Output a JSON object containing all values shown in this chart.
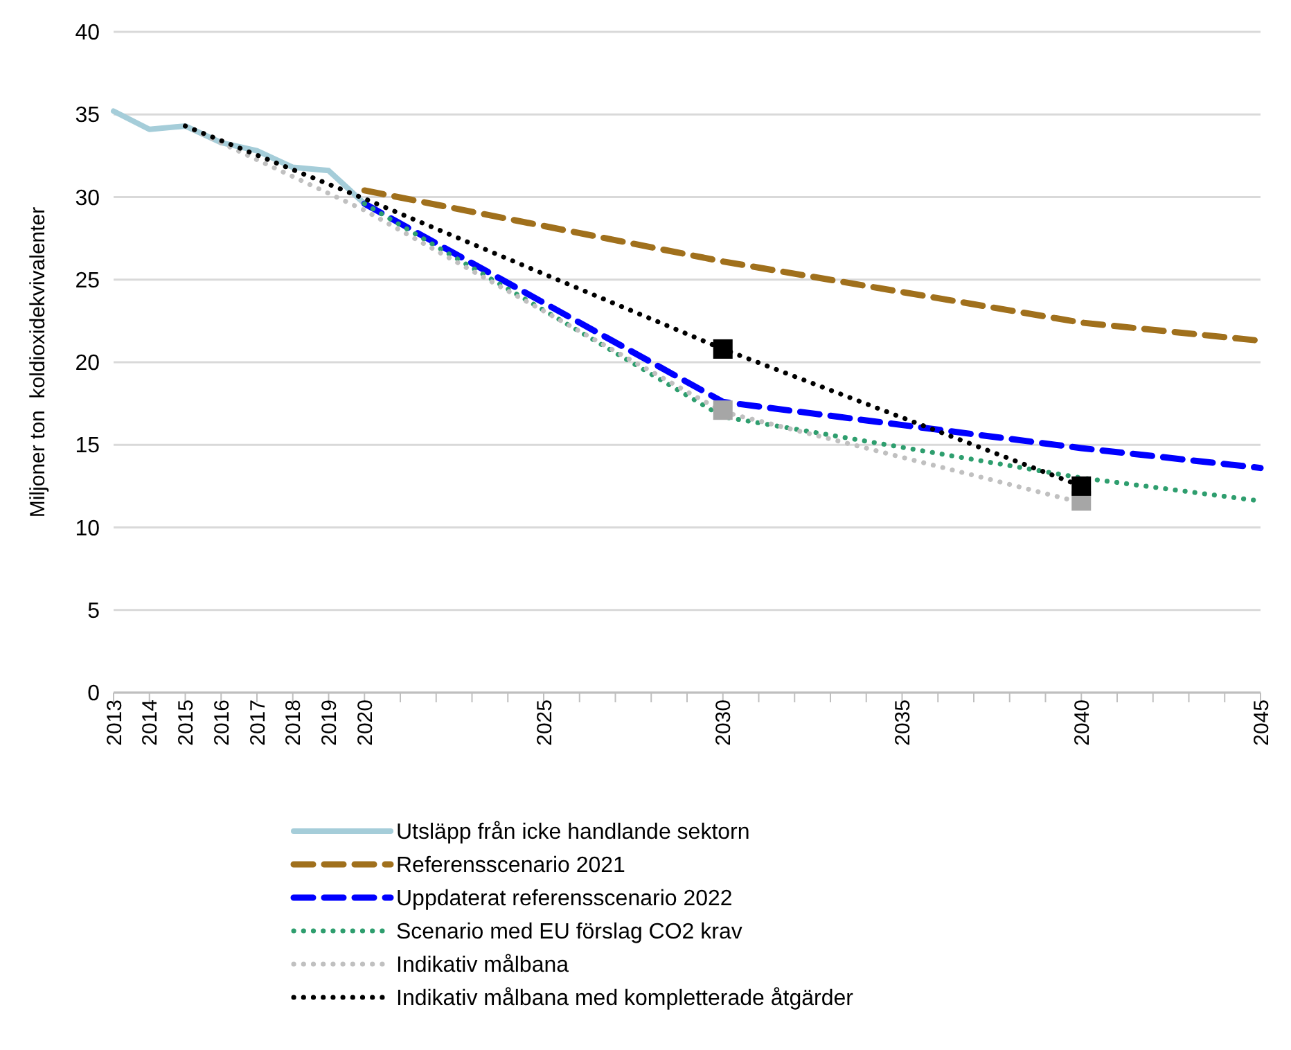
{
  "chart_data": {
    "type": "line",
    "ylabel": "Miljoner ton  koldioxidekvivalenter",
    "xlim": [
      2013,
      2045
    ],
    "ylim": [
      0,
      40
    ],
    "yticks": [
      0,
      5,
      10,
      15,
      20,
      25,
      30,
      35,
      40
    ],
    "xticks": [
      2013,
      2014,
      2015,
      2016,
      2017,
      2018,
      2019,
      2020,
      {
        "value": 2021,
        "label": null
      },
      {
        "value": 2022,
        "label": null
      },
      {
        "value": 2023,
        "label": null
      },
      {
        "value": 2024,
        "label": null
      },
      2025,
      {
        "value": 2026,
        "label": null
      },
      {
        "value": 2027,
        "label": null
      },
      {
        "value": 2028,
        "label": null
      },
      {
        "value": 2029,
        "label": null
      },
      2030,
      {
        "value": 2031,
        "label": null
      },
      {
        "value": 2032,
        "label": null
      },
      {
        "value": 2033,
        "label": null
      },
      {
        "value": 2034,
        "label": null
      },
      2035,
      {
        "value": 2036,
        "label": null
      },
      {
        "value": 2037,
        "label": null
      },
      {
        "value": 2038,
        "label": null
      },
      {
        "value": 2039,
        "label": null
      },
      2040,
      {
        "value": 2041,
        "label": null
      },
      {
        "value": 2042,
        "label": null
      },
      {
        "value": 2043,
        "label": null
      },
      {
        "value": 2044,
        "label": null
      },
      2045
    ],
    "grid": "y",
    "legend": "bottom",
    "marker": "none",
    "series": [
      {
        "name": "Utsläpp från icke handlande sektorn",
        "color": "#a5cdd9",
        "line_style": "solid",
        "x": [
          2013,
          2014,
          2015,
          2016,
          2017,
          2018,
          2019,
          2020
        ],
        "values": [
          35.2,
          34.1,
          34.3,
          33.3,
          32.8,
          31.8,
          31.6,
          29.6
        ]
      },
      {
        "name": "Referensscenario 2021",
        "color": "#a0701c",
        "line_style": "dashed",
        "x": [
          2020,
          2030,
          2040,
          2045
        ],
        "values": [
          30.4,
          26.1,
          22.4,
          21.3
        ]
      },
      {
        "name": "Uppdaterat referensscenario 2022",
        "color": "#0000ff",
        "line_style": "dashed",
        "x": [
          2020,
          2030,
          2040,
          2045
        ],
        "values": [
          29.6,
          17.6,
          14.8,
          13.6
        ]
      },
      {
        "name": "Scenario med EU förslag CO2 krav",
        "color": "#2e9e6e",
        "line_style": "dotted",
        "x": [
          2020,
          2030,
          2040,
          2045
        ],
        "values": [
          29.6,
          16.7,
          13.0,
          11.6
        ]
      },
      {
        "name": "Indikativ målbana",
        "color": "#c0c0c0",
        "line_style": "dotted",
        "x": [
          2015,
          2020,
          2030,
          2040
        ],
        "values": [
          34.3,
          29.2,
          17.0,
          11.5
        ]
      },
      {
        "name": "Indikativ målbana med kompletterade åtgärder",
        "color": "#000000",
        "line_style": "dotted",
        "x": [
          2015,
          2020,
          2030,
          2040
        ],
        "values": [
          34.3,
          29.9,
          20.8,
          12.5
        ]
      },
      {
        "type": "scatter",
        "marker": "square",
        "color": "#a6a6a6",
        "x": [
          2030,
          2040
        ],
        "values": [
          17.1,
          11.6
        ]
      },
      {
        "type": "scatter",
        "marker": "square",
        "color": "#000000",
        "x": [
          2030,
          2040
        ],
        "values": [
          20.8,
          12.5
        ]
      }
    ]
  }
}
